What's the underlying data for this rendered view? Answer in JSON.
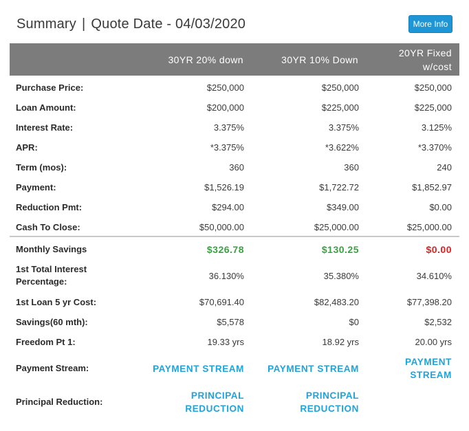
{
  "header": {
    "title_summary": "Summary",
    "title_separator": "|",
    "title_quote": "Quote Date - 04/03/2020",
    "more_info_label": "More Info"
  },
  "columns": [
    "30YR 20% down",
    "30YR 10% Down",
    "20YR Fixed w/cost"
  ],
  "rows": [
    {
      "label": "Purchase Price:",
      "values": [
        "$250,000",
        "$250,000",
        "$250,000"
      ]
    },
    {
      "label": "Loan Amount:",
      "values": [
        "$200,000",
        "$225,000",
        "$225,000"
      ]
    },
    {
      "label": "Interest Rate:",
      "values": [
        "3.375%",
        "3.375%",
        "3.125%"
      ]
    },
    {
      "label": "APR:",
      "values": [
        "*3.375%",
        "*3.622%",
        "*3.370%"
      ]
    },
    {
      "label": "Term (mos):",
      "values": [
        "360",
        "360",
        "240"
      ]
    },
    {
      "label": "Payment:",
      "values": [
        "$1,526.19",
        "$1,722.72",
        "$1,852.97"
      ]
    },
    {
      "label": "Reduction Pmt:",
      "values": [
        "$294.00",
        "$349.00",
        "$0.00"
      ]
    },
    {
      "label": "Cash To Close:",
      "values": [
        "$50,000.00",
        "$25,000.00",
        "$25,000.00"
      ]
    }
  ],
  "monthly_savings": {
    "label": "Monthly Savings",
    "values": [
      "$326.78",
      "$130.25",
      "$0.00"
    ],
    "colors": [
      "#3aa142",
      "#3aa142",
      "#e02020"
    ]
  },
  "interest_pct": {
    "label": "1st Total Interest Percentage:",
    "values": [
      "36.130%",
      "35.380%",
      "34.610%"
    ]
  },
  "lower_rows": [
    {
      "label": "1st Loan 5 yr Cost:",
      "values": [
        "$70,691.40",
        "$82,483.20",
        "$77,398.20"
      ]
    },
    {
      "label": "Savings(60 mth):",
      "values": [
        "$5,578",
        "$0",
        "$2,532"
      ]
    },
    {
      "label": "Freedom Pt 1:",
      "values": [
        "19.33 yrs",
        "18.92 yrs",
        "20.00 yrs"
      ]
    }
  ],
  "payment_stream": {
    "label": "Payment Stream:",
    "link": "PAYMENT STREAM"
  },
  "principal_reduction": {
    "label": "Principal Reduction:",
    "link": "PRINCIPAL REDUCTION"
  }
}
